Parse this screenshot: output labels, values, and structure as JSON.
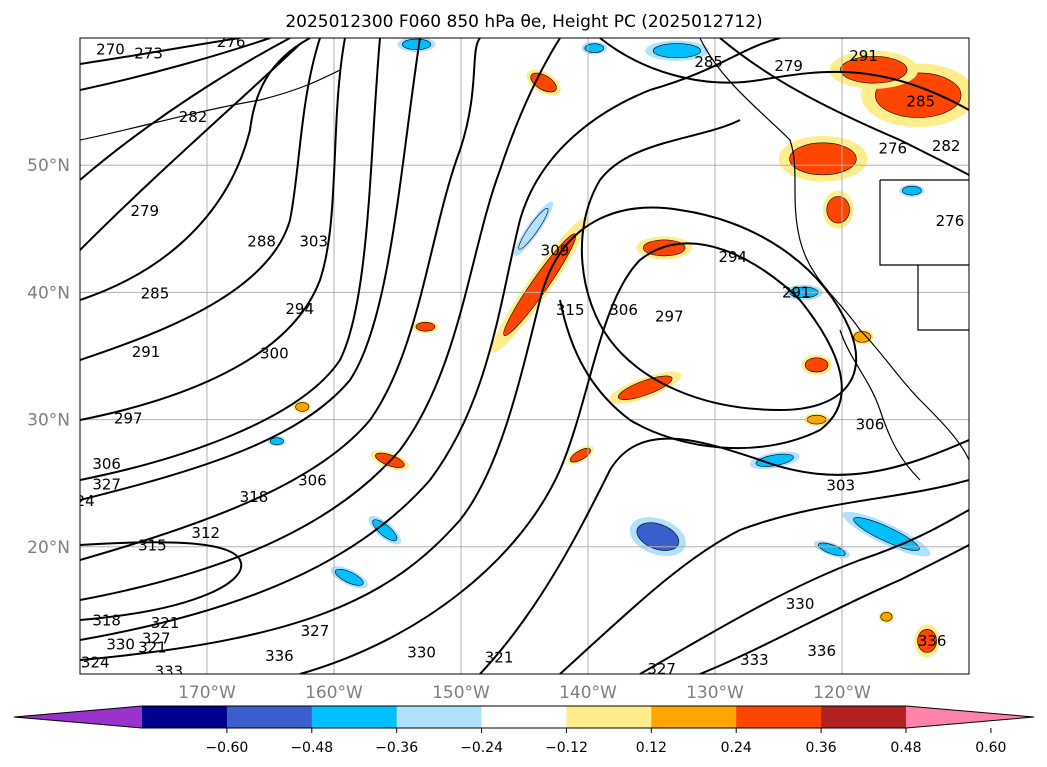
{
  "figure": {
    "title": "2025012300 F060 850 hPa θe, Height PC (2025012712)"
  },
  "chart_data": {
    "type": "contour_map",
    "title": "2025012300 F060 850 hPa θe, Height PC (2025012712)",
    "xlabel": "",
    "ylabel": "",
    "map_extent": {
      "lon": [
        -180,
        -110
      ],
      "lat": [
        10,
        60
      ]
    },
    "grid": true,
    "x_ticks": [
      "170°W",
      "160°W",
      "150°W",
      "140°W",
      "130°W",
      "120°W"
    ],
    "x_tick_values": [
      -170,
      -160,
      -150,
      -140,
      -130,
      -120
    ],
    "y_ticks": [
      "50°N",
      "40°N",
      "30°N",
      "20°N"
    ],
    "y_tick_values": [
      50,
      40,
      30,
      20
    ],
    "contour_labels": [
      {
        "text": "270",
        "lon": -177.6,
        "lat": 59.1
      },
      {
        "text": "273",
        "lon": -174.6,
        "lat": 58.8
      },
      {
        "text": "276",
        "lon": -168.1,
        "lat": 59.7
      },
      {
        "text": "282",
        "lon": -171.1,
        "lat": 53.8
      },
      {
        "text": "279",
        "lon": -174.9,
        "lat": 46.4
      },
      {
        "text": "288",
        "lon": -165.7,
        "lat": 44.0
      },
      {
        "text": "303",
        "lon": -161.6,
        "lat": 44.0
      },
      {
        "text": "285",
        "lon": -174.1,
        "lat": 39.9
      },
      {
        "text": "294",
        "lon": -162.7,
        "lat": 38.7
      },
      {
        "text": "291",
        "lon": -174.8,
        "lat": 35.3
      },
      {
        "text": "300",
        "lon": -164.7,
        "lat": 35.2
      },
      {
        "text": "297",
        "lon": -176.2,
        "lat": 30.1
      },
      {
        "text": "306",
        "lon": -177.9,
        "lat": 26.5
      },
      {
        "text": "327",
        "lon": -177.9,
        "lat": 24.9
      },
      {
        "text": "24",
        "lon": -179.6,
        "lat": 23.6
      },
      {
        "text": "306",
        "lon": -161.7,
        "lat": 25.2
      },
      {
        "text": "318",
        "lon": -166.3,
        "lat": 23.9
      },
      {
        "text": "315",
        "lon": -174.3,
        "lat": 20.1
      },
      {
        "text": "312",
        "lon": -170.1,
        "lat": 21.1
      },
      {
        "text": "309",
        "lon": -142.6,
        "lat": 43.3
      },
      {
        "text": "315",
        "lon": -141.4,
        "lat": 38.6
      },
      {
        "text": "306",
        "lon": -137.2,
        "lat": 38.6
      },
      {
        "text": "297",
        "lon": -133.6,
        "lat": 38.1
      },
      {
        "text": "294",
        "lon": -128.6,
        "lat": 42.8
      },
      {
        "text": "285",
        "lon": -130.5,
        "lat": 58.1
      },
      {
        "text": "279",
        "lon": -124.2,
        "lat": 57.8
      },
      {
        "text": "291",
        "lon": -118.3,
        "lat": 58.6
      },
      {
        "text": "285",
        "lon": -113.8,
        "lat": 55.0
      },
      {
        "text": "282",
        "lon": -111.8,
        "lat": 51.5
      },
      {
        "text": "276",
        "lon": -116.0,
        "lat": 51.3
      },
      {
        "text": "276",
        "lon": -111.5,
        "lat": 45.6
      },
      {
        "text": "318",
        "lon": -177.9,
        "lat": 14.2
      },
      {
        "text": "321",
        "lon": -173.3,
        "lat": 14.0
      },
      {
        "text": "327",
        "lon": -174.0,
        "lat": 12.8
      },
      {
        "text": "330",
        "lon": -176.8,
        "lat": 12.3
      },
      {
        "text": "327",
        "lon": -161.5,
        "lat": 13.4
      },
      {
        "text": "321",
        "lon": -174.3,
        "lat": 12.1
      },
      {
        "text": "324",
        "lon": -178.8,
        "lat": 10.9
      },
      {
        "text": "333",
        "lon": -173.0,
        "lat": 10.2
      },
      {
        "text": "336",
        "lon": -164.3,
        "lat": 11.4
      },
      {
        "text": "330",
        "lon": -153.1,
        "lat": 11.7
      },
      {
        "text": "321",
        "lon": -147.0,
        "lat": 11.3
      },
      {
        "text": "327",
        "lon": -134.2,
        "lat": 10.4
      },
      {
        "text": "333",
        "lon": -126.9,
        "lat": 11.1
      },
      {
        "text": "336",
        "lon": -121.6,
        "lat": 11.8
      },
      {
        "text": "336",
        "lon": -112.9,
        "lat": 12.6
      },
      {
        "text": "330",
        "lon": -123.3,
        "lat": 15.5
      },
      {
        "text": "303",
        "lon": -120.1,
        "lat": 24.8
      },
      {
        "text": "306",
        "lon": -117.8,
        "lat": 29.6
      },
      {
        "text": "291",
        "lon": -123.6,
        "lat": 40.0
      }
    ],
    "colorbar": {
      "orientation": "horizontal",
      "extend": "both",
      "ticks": [
        "−0.60",
        "−0.48",
        "−0.36",
        "−0.24",
        "−0.12",
        "0.12",
        "0.24",
        "0.36",
        "0.48",
        "0.60"
      ],
      "tick_values": [
        -0.6,
        -0.48,
        -0.36,
        -0.24,
        -0.12,
        0.12,
        0.24,
        0.36,
        0.48,
        0.6
      ],
      "colors": [
        "#9932cc",
        "#00008b",
        "#3a5fcd",
        "#00bfff",
        "#b0e2ff",
        "#ffffff",
        "#ffec8b",
        "#ffa500",
        "#ff4500",
        "#b22222",
        "#ff82ab"
      ]
    },
    "shading_blobs": [
      {
        "lon": -143.8,
        "lat": 40.6,
        "value": 0.4,
        "rx": 6.5,
        "ry": 0.9,
        "angle": 55
      },
      {
        "lon": -134.0,
        "lat": 43.5,
        "value": 0.36,
        "rx": 2.2,
        "ry": 0.9,
        "angle": 0
      },
      {
        "lon": -135.5,
        "lat": 32.5,
        "value": 0.36,
        "rx": 3.0,
        "ry": 0.8,
        "angle": 20
      },
      {
        "lon": -140.6,
        "lat": 27.2,
        "value": 0.36,
        "rx": 1.2,
        "ry": 0.5,
        "angle": 30
      },
      {
        "lon": -152.8,
        "lat": 37.3,
        "value": 0.4,
        "rx": 1.0,
        "ry": 0.5,
        "angle": 0
      },
      {
        "lon": -162.5,
        "lat": 31.0,
        "value": 0.3,
        "rx": 0.7,
        "ry": 0.5,
        "angle": 0
      },
      {
        "lon": -155.6,
        "lat": 26.8,
        "value": 0.4,
        "rx": 1.6,
        "ry": 0.6,
        "angle": -20
      },
      {
        "lon": -143.5,
        "lat": 56.5,
        "value": 0.36,
        "rx": 1.5,
        "ry": 0.8,
        "angle": -30
      },
      {
        "lon": -114.0,
        "lat": 55.5,
        "value": 0.45,
        "rx": 4.5,
        "ry": 2.5,
        "angle": 0
      },
      {
        "lon": -121.5,
        "lat": 50.5,
        "value": 0.45,
        "rx": 3.5,
        "ry": 1.8,
        "angle": 0
      },
      {
        "lon": -117.5,
        "lat": 57.5,
        "value": 0.4,
        "rx": 3.5,
        "ry": 1.5,
        "angle": 0
      },
      {
        "lon": -120.3,
        "lat": 46.5,
        "value": 0.4,
        "rx": 1.2,
        "ry": 1.5,
        "angle": 0
      },
      {
        "lon": -118.4,
        "lat": 36.5,
        "value": 0.3,
        "rx": 0.9,
        "ry": 0.6,
        "angle": 0
      },
      {
        "lon": -122.0,
        "lat": 34.3,
        "value": 0.36,
        "rx": 1.2,
        "ry": 0.8,
        "angle": 0
      },
      {
        "lon": -122.0,
        "lat": 30.0,
        "value": 0.3,
        "rx": 1.0,
        "ry": 0.5,
        "angle": 0
      },
      {
        "lon": -113.3,
        "lat": 12.6,
        "value": 0.4,
        "rx": 1.0,
        "ry": 1.3,
        "angle": 0
      },
      {
        "lon": -116.5,
        "lat": 14.5,
        "value": 0.3,
        "rx": 0.6,
        "ry": 0.5,
        "angle": 0
      },
      {
        "lon": -134.5,
        "lat": 20.8,
        "value": -0.4,
        "rx": 2.3,
        "ry": 1.4,
        "angle": -20
      },
      {
        "lon": -125.3,
        "lat": 26.8,
        "value": -0.36,
        "rx": 2.0,
        "ry": 0.6,
        "angle": 10
      },
      {
        "lon": -116.5,
        "lat": 21.0,
        "value": -0.36,
        "rx": 3.8,
        "ry": 0.8,
        "angle": -25
      },
      {
        "lon": -120.8,
        "lat": 19.8,
        "value": -0.3,
        "rx": 1.5,
        "ry": 0.5,
        "angle": -20
      },
      {
        "lon": -144.3,
        "lat": 45.0,
        "value": -0.24,
        "rx": 2.6,
        "ry": 0.5,
        "angle": 55
      },
      {
        "lon": -156.0,
        "lat": 21.3,
        "value": -0.36,
        "rx": 1.6,
        "ry": 0.6,
        "angle": -40
      },
      {
        "lon": -158.8,
        "lat": 17.6,
        "value": -0.36,
        "rx": 1.6,
        "ry": 0.6,
        "angle": -25
      },
      {
        "lon": -164.5,
        "lat": 28.3,
        "value": -0.36,
        "rx": 0.7,
        "ry": 0.4,
        "angle": 0
      },
      {
        "lon": -133.0,
        "lat": 59.0,
        "value": -0.36,
        "rx": 2.5,
        "ry": 0.8,
        "angle": 0
      },
      {
        "lon": -153.5,
        "lat": 59.5,
        "value": -0.3,
        "rx": 1.5,
        "ry": 0.6,
        "angle": 0
      },
      {
        "lon": -139.5,
        "lat": 59.2,
        "value": -0.3,
        "rx": 1.0,
        "ry": 0.5,
        "angle": 0
      },
      {
        "lon": -123.0,
        "lat": 40.0,
        "value": -0.3,
        "rx": 1.5,
        "ry": 0.6,
        "angle": 0
      },
      {
        "lon": -114.5,
        "lat": 48.0,
        "value": -0.3,
        "rx": 1.0,
        "ry": 0.5,
        "angle": 0
      }
    ]
  }
}
